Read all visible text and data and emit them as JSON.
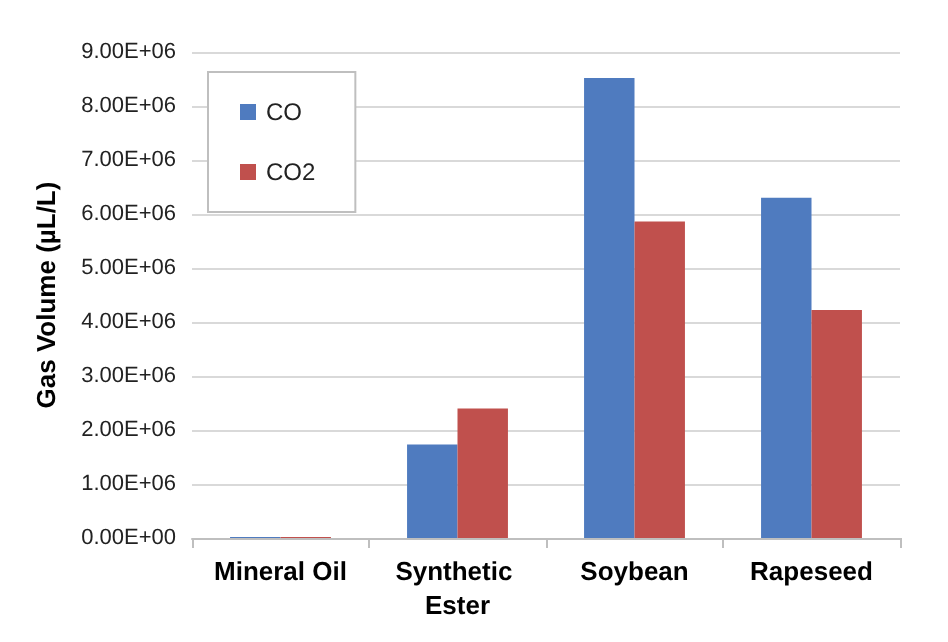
{
  "chart_data": {
    "type": "bar",
    "ylabel": "Gas Volume (µL/L)",
    "categories": [
      "Mineral Oil",
      "Synthetic Ester",
      "Soybean",
      "Rapeseed"
    ],
    "series": [
      {
        "name": "CO",
        "color": "#4f7bbf",
        "values": [
          20000,
          1730000,
          8520000,
          6300000
        ]
      },
      {
        "name": "CO2",
        "color": "#c0504d",
        "values": [
          20000,
          2400000,
          5860000,
          4220000
        ]
      }
    ],
    "ylim": [
      0,
      9000000
    ],
    "yticks": [
      {
        "value": 0,
        "label": "0.00E+00"
      },
      {
        "value": 1000000,
        "label": "1.00E+06"
      },
      {
        "value": 2000000,
        "label": "2.00E+06"
      },
      {
        "value": 3000000,
        "label": "3.00E+06"
      },
      {
        "value": 4000000,
        "label": "4.00E+06"
      },
      {
        "value": 5000000,
        "label": "5.00E+06"
      },
      {
        "value": 6000000,
        "label": "6.00E+06"
      },
      {
        "value": 7000000,
        "label": "7.00E+06"
      },
      {
        "value": 8000000,
        "label": "8.00E+06"
      },
      {
        "value": 9000000,
        "label": "9.00E+06"
      }
    ],
    "grid": "y",
    "legend": "top left"
  }
}
